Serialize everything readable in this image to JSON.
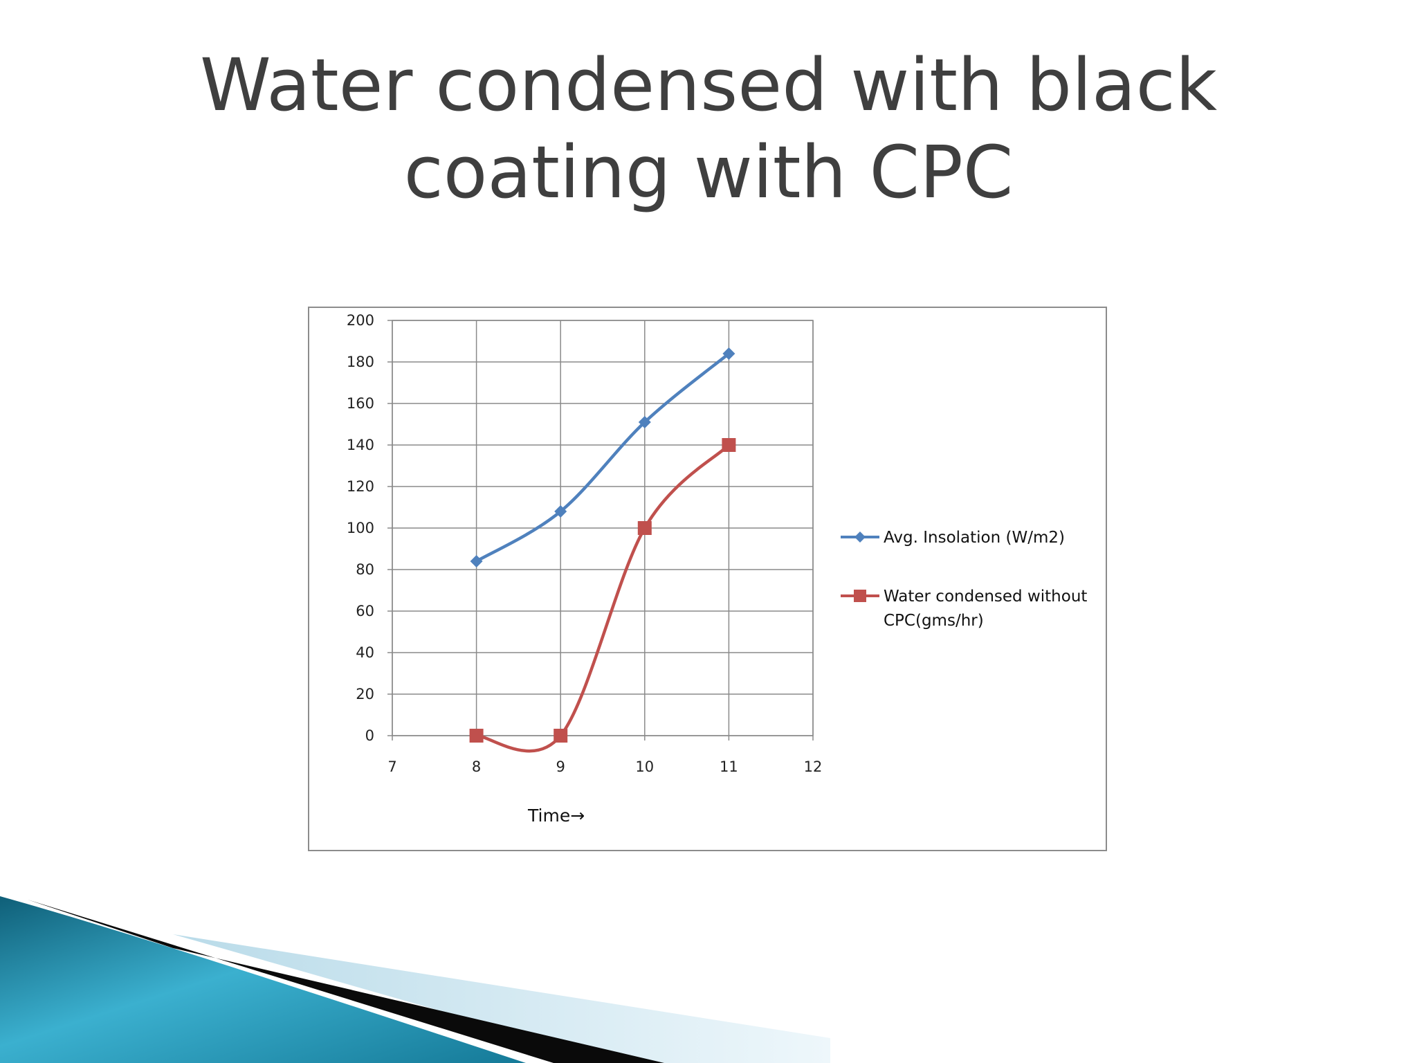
{
  "slide": {
    "title": "Water condensed with black coating with CPC"
  },
  "chart_data": {
    "type": "line",
    "title": "",
    "xlabel": "Time→",
    "ylabel": "",
    "xlim": [
      7,
      12
    ],
    "ylim": [
      0,
      200
    ],
    "x_ticks": [
      7,
      8,
      9,
      10,
      11,
      12
    ],
    "y_ticks": [
      0,
      20,
      40,
      60,
      80,
      100,
      120,
      140,
      160,
      180,
      200
    ],
    "grid": true,
    "smooth": true,
    "legend_position": "right",
    "series": [
      {
        "name": "Avg. Insolation  (W/m2)",
        "color": "#4f81bd",
        "marker": "diamond",
        "points": [
          [
            8,
            84
          ],
          [
            9,
            108
          ],
          [
            10,
            151
          ],
          [
            11,
            184
          ]
        ]
      },
      {
        "name": "Water condensed without CPC(gms/hr)",
        "name_lines": [
          "Water condensed without",
          "CPC(gms/hr)"
        ],
        "color": "#c0504d",
        "marker": "square",
        "points": [
          [
            8,
            0
          ],
          [
            9,
            0
          ],
          [
            10,
            100
          ],
          [
            11,
            140
          ]
        ]
      }
    ]
  }
}
